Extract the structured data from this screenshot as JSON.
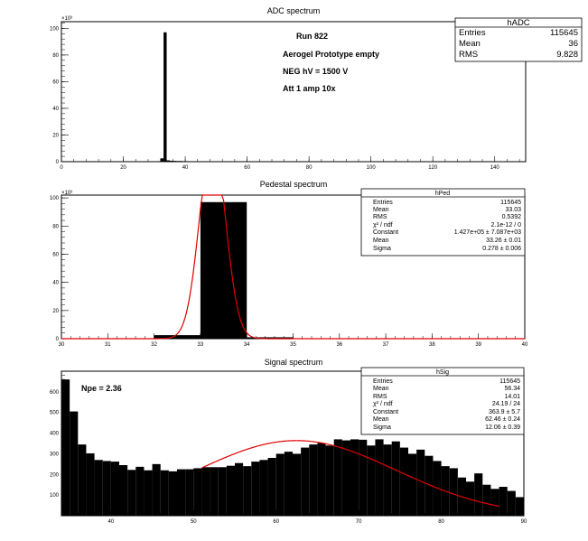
{
  "chart_data": [
    {
      "type": "bar",
      "title": "ADC spectrum",
      "xlabel": "",
      "ylabel": "",
      "y_multiplier": "×10³",
      "xlim": [
        0,
        150
      ],
      "ylim": [
        0,
        105
      ],
      "xticks": [
        0,
        20,
        40,
        60,
        80,
        100,
        120,
        140
      ],
      "yticks": [
        0,
        20,
        40,
        60,
        80,
        100
      ],
      "bin_width": 1,
      "bins": [
        {
          "x": 32,
          "y": 2.5
        },
        {
          "x": 33,
          "y": 97.0
        },
        {
          "x": 34,
          "y": 1.0
        },
        {
          "x": 35,
          "y": 0.7
        },
        {
          "x": 36,
          "y": 0.6
        },
        {
          "x": 37,
          "y": 0.5
        },
        {
          "x": 38,
          "y": 0.5
        },
        {
          "x": 39,
          "y": 0.4
        },
        {
          "x": 40,
          "y": 0.4
        },
        {
          "x": 45,
          "y": 0.35
        },
        {
          "x": 50,
          "y": 0.3
        },
        {
          "x": 55,
          "y": 0.3
        },
        {
          "x": 60,
          "y": 0.3
        },
        {
          "x": 65,
          "y": 0.3
        },
        {
          "x": 70,
          "y": 0.2
        },
        {
          "x": 75,
          "y": 0.2
        },
        {
          "x": 80,
          "y": 0.15
        },
        {
          "x": 85,
          "y": 0.1
        }
      ],
      "annotations": [
        "Run  822",
        "Aerogel Prototype empty",
        "NEG hV = 1500 V",
        "Att 1 amp 10x"
      ],
      "stats": {
        "name": "hADC",
        "rows": [
          {
            "label": "Entries",
            "value": "115645"
          },
          {
            "label": "Mean",
            "value": "36"
          },
          {
            "label": "RMS",
            "value": "9.828"
          }
        ]
      }
    },
    {
      "type": "bar",
      "title": "Pedestal spectrum",
      "xlabel": "",
      "ylabel": "",
      "y_multiplier": "×10³",
      "xlim": [
        30,
        40
      ],
      "ylim": [
        0,
        102
      ],
      "xticks": [
        30,
        31,
        32,
        33,
        34,
        35,
        36,
        37,
        38,
        39,
        40
      ],
      "yticks": [
        0,
        20,
        40,
        60,
        80,
        100
      ],
      "bin_width": 1,
      "bins": [
        {
          "x": 32,
          "y": 2.5
        },
        {
          "x": 33,
          "y": 97.0
        },
        {
          "x": 34,
          "y": 1.0
        }
      ],
      "fit": {
        "type": "gaussian",
        "constant": 142700,
        "mean": 33.26,
        "sigma": 0.278,
        "scale": 0.001
      },
      "stats": {
        "name": "hPed",
        "rows": [
          {
            "label": "Entries",
            "value": "115645"
          },
          {
            "label": "Mean",
            "value": "33.03"
          },
          {
            "label": "RMS",
            "value": "0.5392"
          },
          {
            "label": "χ² / ndf",
            "value": "2.1e-12 / 0"
          },
          {
            "label": "Constant",
            "value": "1.427e+05 ± 7.087e+03"
          },
          {
            "label": "Mean",
            "value": "33.26 ± 0.01"
          },
          {
            "label": "Sigma",
            "value": "0.278 ± 0.006"
          }
        ]
      }
    },
    {
      "type": "bar",
      "title": "Signal spectrum",
      "xlabel": "",
      "ylabel": "",
      "xlim": [
        34,
        90
      ],
      "ylim": [
        0,
        700
      ],
      "xticks": [
        40,
        50,
        60,
        70,
        80,
        90
      ],
      "yticks": [
        100,
        200,
        300,
        400,
        500,
        600
      ],
      "bin_width": 1,
      "x_start": 34,
      "values": [
        660,
        505,
        345,
        302,
        270,
        265,
        262,
        245,
        222,
        237,
        220,
        250,
        220,
        215,
        225,
        225,
        230,
        235,
        235,
        235,
        242,
        255,
        240,
        262,
        270,
        280,
        300,
        310,
        300,
        330,
        345,
        352,
        340,
        370,
        365,
        370,
        368,
        340,
        370,
        345,
        360,
        330,
        300,
        320,
        290,
        265,
        240,
        230,
        185,
        165,
        205,
        150,
        130,
        140,
        120,
        90
      ],
      "fit": {
        "type": "gaussian",
        "constant": 363.9,
        "mean": 62.46,
        "sigma": 12.06,
        "range": [
          51,
          87
        ],
        "scale": 1
      },
      "annotations": [
        "Npe = 2.36"
      ],
      "stats": {
        "name": "hSig",
        "rows": [
          {
            "label": "Entries",
            "value": "115645"
          },
          {
            "label": "Mean",
            "value": "56.34"
          },
          {
            "label": "RMS",
            "value": "14.01"
          },
          {
            "label": "χ² / ndf",
            "value": "24.19 / 24"
          },
          {
            "label": "Constant",
            "value": "363.9 ± 5.7"
          },
          {
            "label": "Mean",
            "value": "62.46 ± 0.24"
          },
          {
            "label": "Sigma",
            "value": "12.06 ± 0.39"
          }
        ]
      }
    }
  ],
  "colors": {
    "fill": "#000000",
    "fit": "#e00000",
    "frame": "#000000",
    "background": "#ffffff"
  }
}
